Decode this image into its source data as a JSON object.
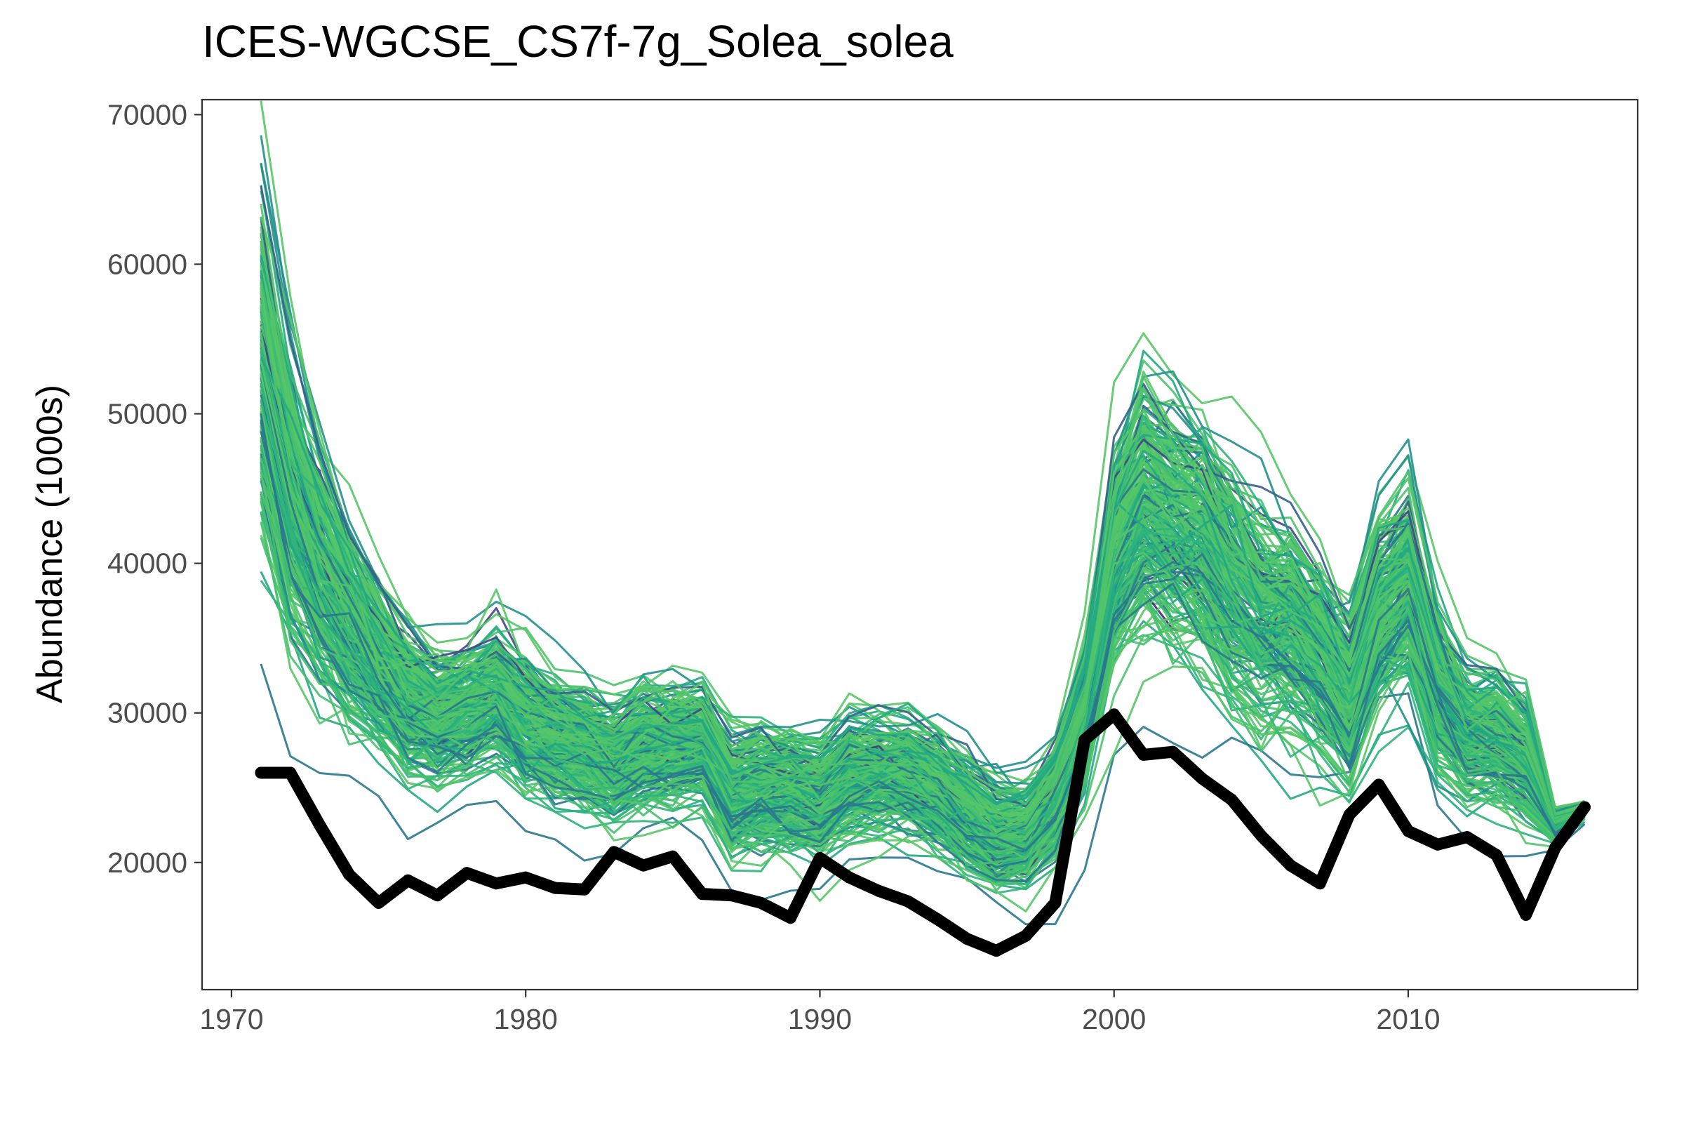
{
  "chart_data": {
    "type": "line",
    "title": "ICES-WGCSE_CS7f-7g_Solea_solea",
    "xlabel": "",
    "ylabel": "Abundance (1000s)",
    "xlim": [
      1969.0,
      2017.8
    ],
    "ylim": [
      11500,
      71000
    ],
    "x_ticks": [
      1970,
      1980,
      1990,
      2000,
      2010
    ],
    "y_ticks": [
      20000,
      30000,
      40000,
      50000,
      60000,
      70000
    ],
    "x_tick_labels": [
      "1970",
      "1980",
      "1990",
      "2000",
      "2010"
    ],
    "y_tick_labels": [
      "20000",
      "30000",
      "40000",
      "50000",
      "60000",
      "70000"
    ],
    "grid": false,
    "legend": "none",
    "colors": {
      "ensemble_palette": [
        "#482576",
        "#414487",
        "#355f8d",
        "#2a788e",
        "#21918c",
        "#22a884",
        "#2fb47c",
        "#44bf70",
        "#4ec36b",
        "#56c667"
      ],
      "ensemble_dominant": "#4ec36b",
      "observed": "#000000",
      "panel_border": "#333333",
      "tick_text": "#4d4d4d"
    },
    "ensemble": {
      "description_series": "simulated trajectories",
      "count": 240,
      "x": [
        1971,
        1972,
        1973,
        1974,
        1975,
        1976,
        1977,
        1978,
        1979,
        1980,
        1981,
        1982,
        1983,
        1984,
        1985,
        1986,
        1987,
        1988,
        1989,
        1990,
        1991,
        1992,
        1993,
        1994,
        1995,
        1996,
        1997,
        1998,
        1999,
        2000,
        2001,
        2002,
        2003,
        2004,
        2005,
        2006,
        2007,
        2008,
        2009,
        2010,
        2011,
        2012,
        2013,
        2014,
        2015,
        2016
      ],
      "median": [
        54000,
        45000,
        40000,
        36500,
        33500,
        31000,
        30000,
        30500,
        31500,
        29500,
        28500,
        28000,
        27000,
        28000,
        28000,
        28000,
        24500,
        25000,
        25000,
        24500,
        26000,
        26000,
        26000,
        25000,
        23500,
        22000,
        22000,
        24500,
        30000,
        41000,
        44500,
        43000,
        42000,
        39000,
        37000,
        36500,
        34000,
        31000,
        37000,
        39000,
        32000,
        29000,
        28500,
        27000,
        22500,
        23500
      ],
      "spread": [
        6500,
        5500,
        4500,
        3800,
        3200,
        2800,
        2600,
        2600,
        2600,
        2600,
        2400,
        2300,
        2300,
        2300,
        2300,
        2300,
        2200,
        2200,
        2200,
        2200,
        2200,
        2200,
        2200,
        2200,
        2100,
        2000,
        2000,
        2200,
        3000,
        4500,
        5000,
        4800,
        4600,
        4400,
        4000,
        3800,
        3500,
        3200,
        3800,
        4000,
        3200,
        2600,
        2400,
        2200,
        600,
        300
      ]
    },
    "series": [
      {
        "x": [
          1971,
          1972,
          1973,
          1974,
          1975,
          1976,
          1977,
          1978,
          1979,
          1980,
          1981,
          1982,
          1983,
          1984,
          1985,
          1986,
          1987,
          1988,
          1989,
          1990,
          1991,
          1992,
          1993,
          1994,
          1995,
          1996,
          1997,
          1998,
          1999,
          2000,
          2001,
          2002,
          2003,
          2004,
          2005,
          2006,
          2007,
          2008,
          2009,
          2010,
          2011,
          2012,
          2013,
          2014,
          2015,
          2016
        ],
        "values": [
          26000,
          26000,
          22500,
          19200,
          17300,
          18800,
          17800,
          19300,
          18600,
          19000,
          18300,
          18200,
          20700,
          19800,
          20400,
          17900,
          17800,
          17300,
          16300,
          20300,
          19000,
          18100,
          17400,
          16200,
          14900,
          14100,
          15100,
          17300,
          28200,
          29900,
          27200,
          27400,
          25600,
          24200,
          21800,
          19800,
          18600,
          23200,
          25200,
          22100,
          21200,
          21700,
          20500,
          16500,
          21000,
          23700
        ]
      }
    ]
  }
}
